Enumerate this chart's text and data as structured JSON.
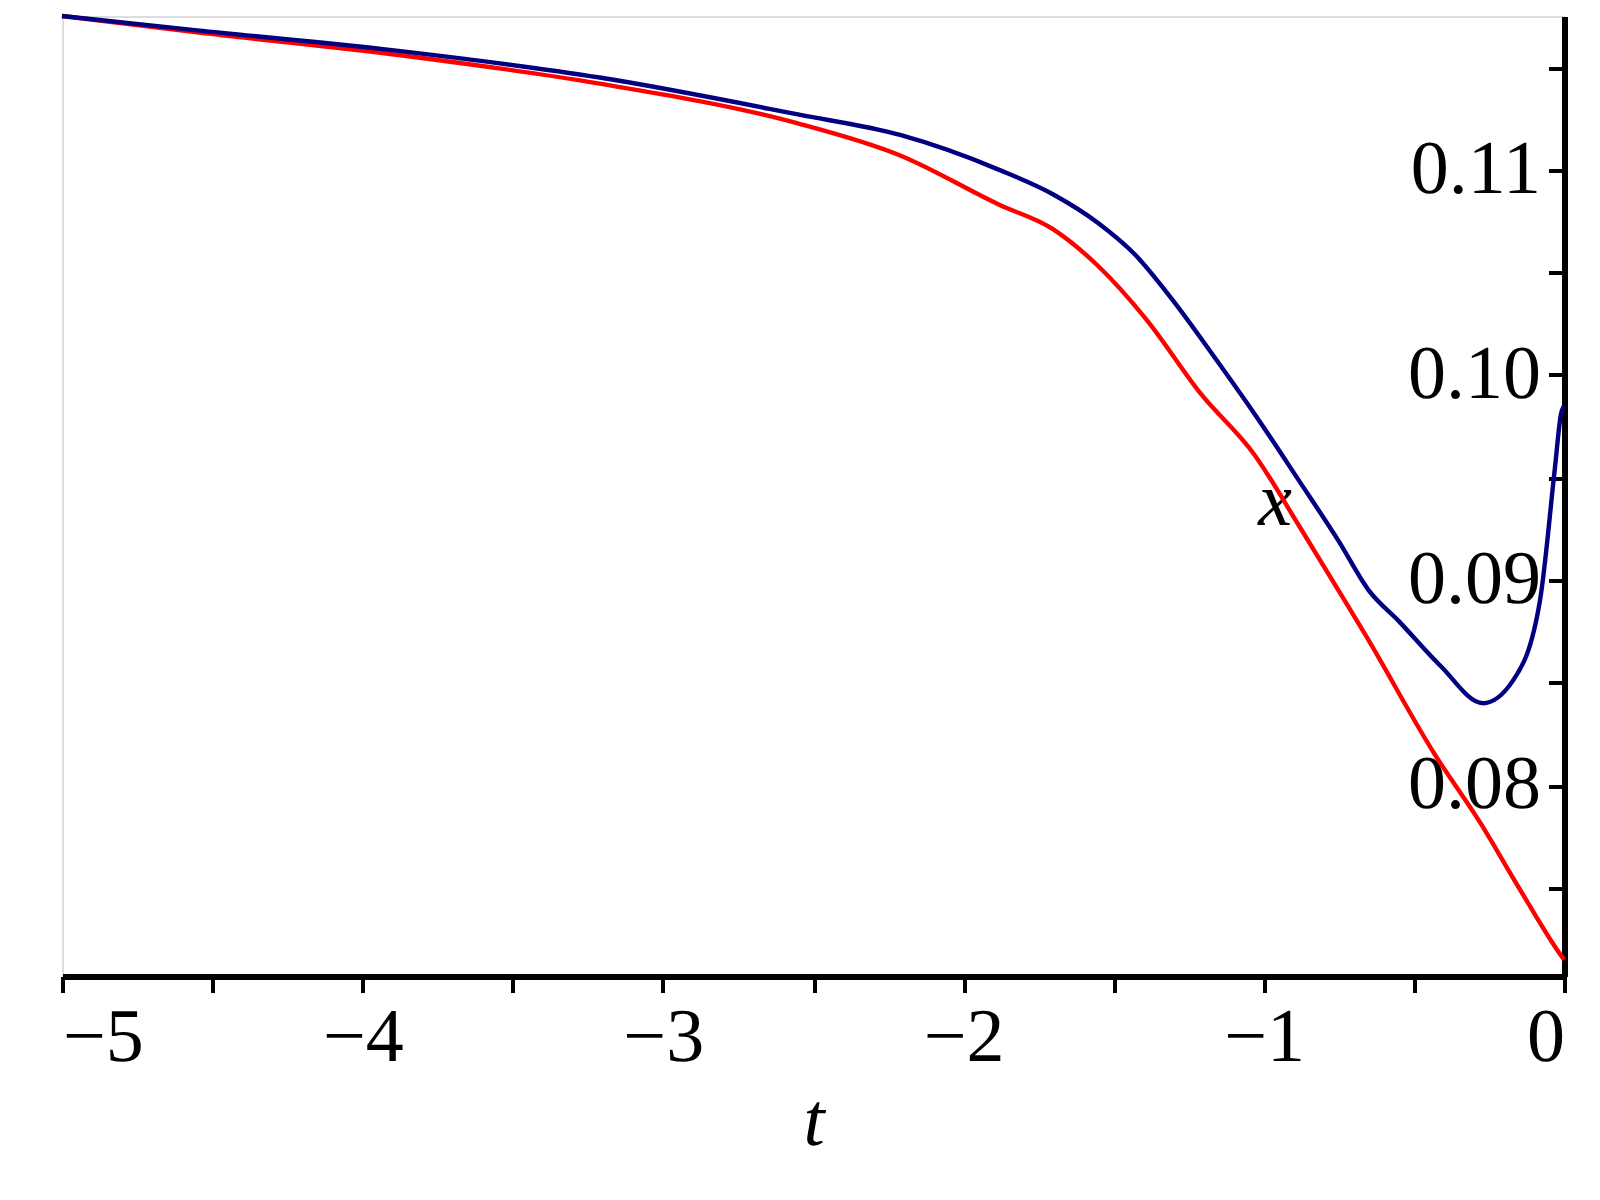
{
  "chart_data": {
    "type": "line",
    "xlabel": "t",
    "ylabel": "x",
    "series": [
      {
        "color": "#ff0000",
        "x": [
          -5.0,
          -4.55,
          -3.88,
          -3.21,
          -2.56,
          -2.21,
          -1.88,
          -1.7,
          -1.55,
          -1.39,
          -1.21,
          -1.03,
          -0.88,
          -0.73,
          -0.66,
          -0.43,
          -0.28,
          -0.15,
          -0.01,
          0.0
        ],
        "values": [
          0.1175,
          0.1167,
          0.1156,
          0.1142,
          0.1123,
          0.1107,
          0.1083,
          0.1071,
          0.1053,
          0.1027,
          0.0991,
          0.0961,
          0.0926,
          0.089,
          0.0873,
          0.0815,
          0.0782,
          0.075,
          0.0717,
          0.0715
        ]
      },
      {
        "color": "#000080",
        "x": [
          -5.0,
          -4.55,
          -3.88,
          -3.21,
          -2.55,
          -2.21,
          -1.88,
          -1.7,
          -1.55,
          -1.43,
          -1.3,
          -1.17,
          -1.03,
          -0.88,
          -0.75,
          -0.65,
          -0.55,
          -0.41,
          -0.27,
          -0.17,
          -0.08,
          -0.03,
          -0.01,
          0.0
        ],
        "values": [
          0.1175,
          0.1168,
          0.1158,
          0.1145,
          0.1127,
          0.1117,
          0.11,
          0.1088,
          0.1074,
          0.1059,
          0.1036,
          0.101,
          0.0981,
          0.0948,
          0.0919,
          0.0895,
          0.088,
          0.0858,
          0.084,
          0.0851,
          0.089,
          0.0955,
          0.0981,
          0.0985
        ]
      }
    ],
    "xlim": [
      -5,
      0
    ],
    "ylim": [
      0.0707,
      0.1175
    ],
    "xticks": [
      {
        "value": -5,
        "label": "−5"
      },
      {
        "value": -4.5,
        "label": null
      },
      {
        "value": -4,
        "label": "−4"
      },
      {
        "value": -3.5,
        "label": null
      },
      {
        "value": -3,
        "label": "−3"
      },
      {
        "value": -2.5,
        "label": null
      },
      {
        "value": -2,
        "label": "−2"
      },
      {
        "value": -1.5,
        "label": null
      },
      {
        "value": -1,
        "label": "−1"
      },
      {
        "value": -0.5,
        "label": null
      },
      0
    ],
    "yticks": [
      {
        "value": 0.075,
        "label": null
      },
      0.08,
      {
        "value": 0.085,
        "label": null
      },
      0.09,
      {
        "value": 0.095,
        "label": null
      },
      {
        "value": 0.1,
        "label": "0.10"
      },
      {
        "value": 0.105,
        "label": null
      },
      0.11,
      {
        "value": 0.115,
        "label": null
      }
    ],
    "grid": false,
    "marker": "none",
    "line_style": "solid"
  }
}
